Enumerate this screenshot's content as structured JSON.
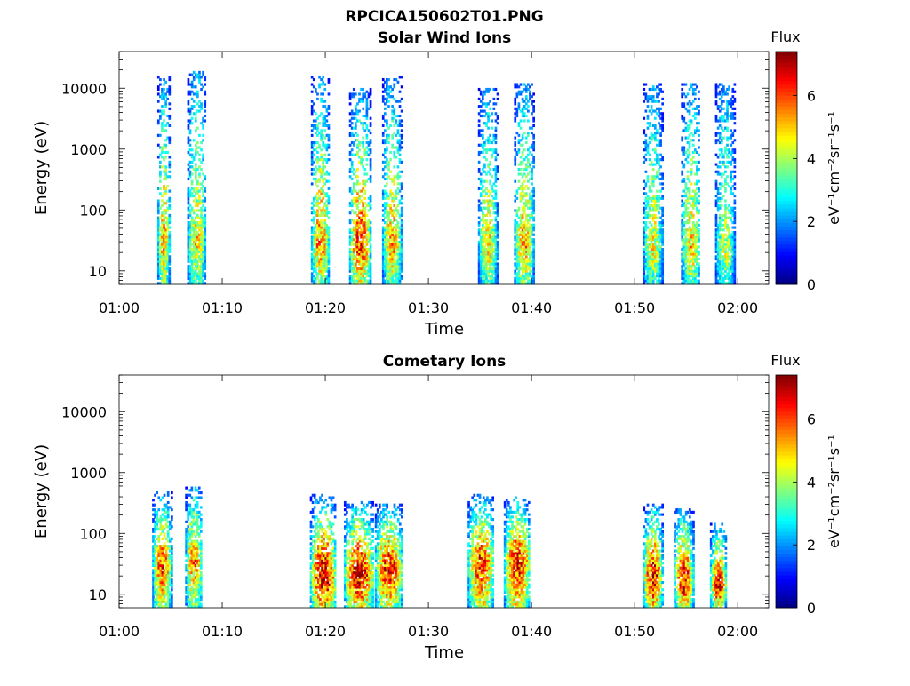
{
  "figure": {
    "title": "RPCICA150602T01.PNG"
  },
  "colorbar": {
    "label": "Flux",
    "unit_label": "eV⁻¹cm⁻²sr⁻¹s⁻¹",
    "ticks": [
      "0",
      "2",
      "4",
      "6"
    ],
    "range": [
      0,
      7.4
    ],
    "colormap": "jet"
  },
  "chart_data": [
    {
      "type": "heatmap",
      "title": "Solar Wind Ions",
      "xlabel": "Time",
      "ylabel": "Energy (eV)",
      "x_tick_labels": [
        "01:00",
        "01:10",
        "01:20",
        "01:30",
        "01:40",
        "01:50",
        "02:00"
      ],
      "x_range_minutes": [
        0,
        63
      ],
      "y_scale": "log",
      "y_tick_labels": [
        "10",
        "100",
        "1000",
        "10000"
      ],
      "y_range": [
        6,
        40000
      ],
      "bursts": [
        {
          "start": 3.7,
          "end": 4.8,
          "peak_energy": 25,
          "peak_flux": 5.5,
          "max_energy": 16000
        },
        {
          "start": 6.6,
          "end": 8.3,
          "peak_energy": 30,
          "peak_flux": 4.8,
          "max_energy": 20000
        },
        {
          "start": 18.6,
          "end": 20.3,
          "peak_energy": 25,
          "peak_flux": 5.6,
          "max_energy": 16000
        },
        {
          "start": 22.3,
          "end": 24.3,
          "peak_energy": 22,
          "peak_flux": 6.2,
          "max_energy": 10000
        },
        {
          "start": 25.5,
          "end": 27.3,
          "peak_energy": 25,
          "peak_flux": 5.3,
          "max_energy": 16000
        },
        {
          "start": 34.8,
          "end": 36.6,
          "peak_energy": 25,
          "peak_flux": 4.8,
          "max_energy": 10000
        },
        {
          "start": 38.3,
          "end": 40.1,
          "peak_energy": 25,
          "peak_flux": 5.3,
          "max_energy": 12000
        },
        {
          "start": 50.8,
          "end": 52.6,
          "peak_energy": 22,
          "peak_flux": 4.6,
          "max_energy": 12000
        },
        {
          "start": 54.5,
          "end": 56.3,
          "peak_energy": 22,
          "peak_flux": 5.0,
          "max_energy": 12000
        },
        {
          "start": 57.8,
          "end": 59.6,
          "peak_energy": 18,
          "peak_flux": 4.2,
          "max_energy": 12000
        }
      ]
    },
    {
      "type": "heatmap",
      "title": "Cometary Ions",
      "xlabel": "Time",
      "ylabel": "Energy (eV)",
      "x_tick_labels": [
        "01:00",
        "01:10",
        "01:20",
        "01:30",
        "01:40",
        "01:50",
        "02:00"
      ],
      "x_range_minutes": [
        0,
        63
      ],
      "y_scale": "log",
      "y_tick_labels": [
        "10",
        "100",
        "1000",
        "10000"
      ],
      "y_range": [
        6,
        40000
      ],
      "bursts": [
        {
          "start": 3.2,
          "end": 5.0,
          "peak_energy": 30,
          "peak_flux": 6.0,
          "max_energy": 500
        },
        {
          "start": 6.4,
          "end": 8.0,
          "peak_energy": 35,
          "peak_flux": 5.6,
          "max_energy": 600
        },
        {
          "start": 18.5,
          "end": 21.0,
          "peak_energy": 20,
          "peak_flux": 7.0,
          "max_energy": 450
        },
        {
          "start": 21.8,
          "end": 24.6,
          "peak_energy": 22,
          "peak_flux": 7.0,
          "max_energy": 350
        },
        {
          "start": 24.8,
          "end": 27.4,
          "peak_energy": 28,
          "peak_flux": 6.6,
          "max_energy": 300
        },
        {
          "start": 33.8,
          "end": 36.3,
          "peak_energy": 30,
          "peak_flux": 6.4,
          "max_energy": 450
        },
        {
          "start": 37.3,
          "end": 39.8,
          "peak_energy": 35,
          "peak_flux": 6.6,
          "max_energy": 400
        },
        {
          "start": 50.8,
          "end": 52.6,
          "peak_energy": 20,
          "peak_flux": 6.8,
          "max_energy": 300
        },
        {
          "start": 53.8,
          "end": 55.6,
          "peak_energy": 18,
          "peak_flux": 6.8,
          "max_energy": 250
        },
        {
          "start": 57.3,
          "end": 58.8,
          "peak_energy": 15,
          "peak_flux": 6.6,
          "max_energy": 150
        }
      ]
    }
  ]
}
